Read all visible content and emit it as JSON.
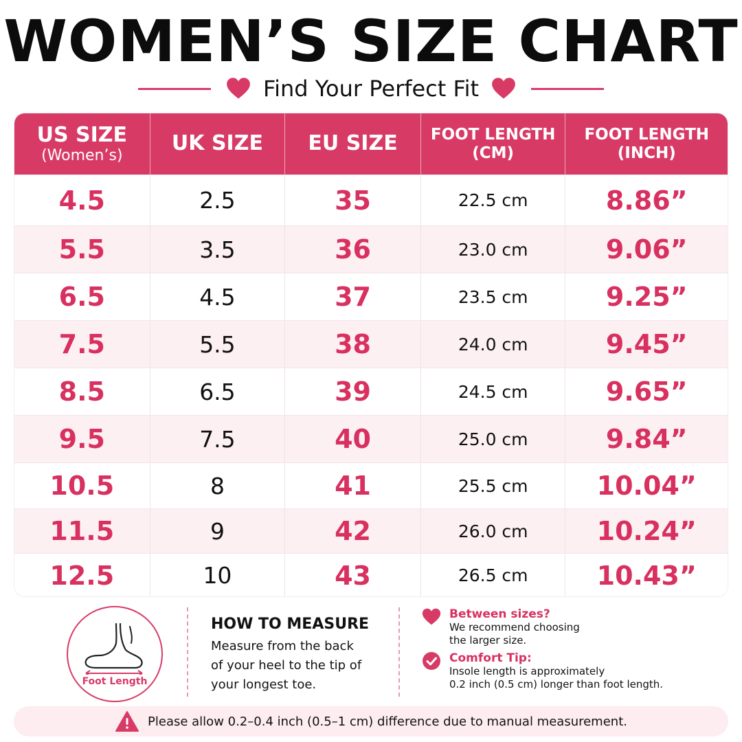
{
  "title": "WOMEN’S SIZE CHART",
  "subtitle": "Find Your Perfect Fit",
  "colors": {
    "accent": "#d83a66",
    "row_tint": "#fdf0f3"
  },
  "icons": [
    "heart-icon",
    "foot-icon",
    "checkmark-icon",
    "warning-icon"
  ],
  "table": {
    "headers": [
      {
        "line1": "US SIZE",
        "line2": "(Women’s)"
      },
      {
        "line1": "UK SIZE",
        "line2": ""
      },
      {
        "line1": "EU SIZE",
        "line2": ""
      },
      {
        "line1": "FOOT LENGTH",
        "line2": "(CM)"
      },
      {
        "line1": "FOOT LENGTH",
        "line2": "(INCH)"
      }
    ],
    "rows": [
      [
        "4.5",
        "2.5",
        "35",
        "22.5 cm",
        "8.86”"
      ],
      [
        "5.5",
        "3.5",
        "36",
        "23.0 cm",
        "9.06”"
      ],
      [
        "6.5",
        "4.5",
        "37",
        "23.5 cm",
        "9.25”"
      ],
      [
        "7.5",
        "5.5",
        "38",
        "24.0 cm",
        "9.45”"
      ],
      [
        "8.5",
        "6.5",
        "39",
        "24.5 cm",
        "9.65”"
      ],
      [
        "9.5",
        "7.5",
        "40",
        "25.0 cm",
        "9.84”"
      ],
      [
        "10.5",
        "8",
        "41",
        "25.5 cm",
        "10.04”"
      ],
      [
        "11.5",
        "9",
        "42",
        "26.0 cm",
        "10.24”"
      ],
      [
        "12.5",
        "10",
        "43",
        "26.5 cm",
        "10.43”"
      ]
    ]
  },
  "foot_diagram": {
    "label": "Foot Length"
  },
  "how_to_measure": {
    "heading": "HOW TO MEASURE",
    "lines": [
      "Measure from the back",
      "of your heel to the tip of",
      "your longest toe."
    ]
  },
  "tips": [
    {
      "heading": "Between sizes?",
      "lines": [
        "We recommend choosing",
        "the larger size."
      ]
    },
    {
      "heading": "Comfort Tip:",
      "lines": [
        "Insole length is approximately",
        "0.2 inch (0.5 cm) longer than foot length."
      ]
    }
  ],
  "notice": "Please allow 0.2–0.4 inch (0.5–1 cm) difference due to manual measurement."
}
